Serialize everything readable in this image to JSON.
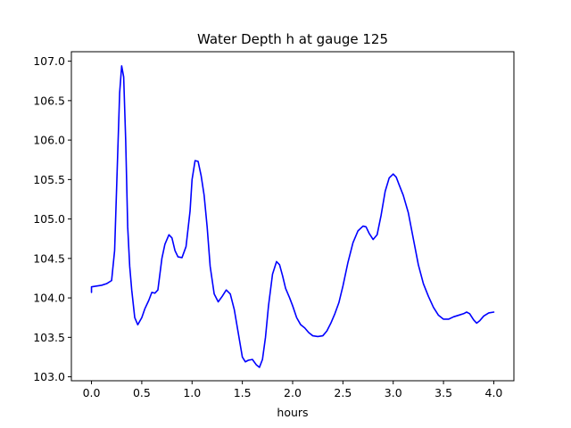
{
  "chart_data": {
    "type": "line",
    "title": "Water Depth h at gauge 125",
    "xlabel": "hours",
    "ylabel": "",
    "xlim": [
      -0.2,
      4.2
    ],
    "ylim": [
      102.95,
      107.12
    ],
    "x_ticks": [
      0.0,
      0.5,
      1.0,
      1.5,
      2.0,
      2.5,
      3.0,
      3.5,
      4.0
    ],
    "x_tick_labels": [
      "0.0",
      "0.5",
      "1.0",
      "1.5",
      "2.0",
      "2.5",
      "3.0",
      "3.5",
      "4.0"
    ],
    "y_ticks": [
      103.0,
      103.5,
      104.0,
      104.5,
      105.0,
      105.5,
      106.0,
      106.5,
      107.0
    ],
    "y_tick_labels": [
      "103.0",
      "103.5",
      "104.0",
      "104.5",
      "105.0",
      "105.5",
      "106.0",
      "106.5",
      "107.0"
    ],
    "grid": false,
    "legend": "none",
    "series": [
      {
        "color": "#0000ff",
        "x": [
          0.0,
          0.0,
          0.05,
          0.1,
          0.15,
          0.2,
          0.23,
          0.26,
          0.28,
          0.3,
          0.32,
          0.34,
          0.36,
          0.38,
          0.4,
          0.43,
          0.46,
          0.5,
          0.53,
          0.57,
          0.6,
          0.63,
          0.66,
          0.7,
          0.73,
          0.77,
          0.8,
          0.83,
          0.86,
          0.9,
          0.94,
          0.98,
          1.0,
          1.03,
          1.06,
          1.09,
          1.12,
          1.15,
          1.18,
          1.22,
          1.26,
          1.3,
          1.34,
          1.38,
          1.42,
          1.46,
          1.5,
          1.53,
          1.56,
          1.6,
          1.64,
          1.67,
          1.7,
          1.73,
          1.76,
          1.8,
          1.84,
          1.87,
          1.9,
          1.93,
          1.97,
          2.0,
          2.04,
          2.08,
          2.12,
          2.16,
          2.2,
          2.25,
          2.3,
          2.34,
          2.38,
          2.42,
          2.46,
          2.5,
          2.55,
          2.6,
          2.65,
          2.7,
          2.73,
          2.76,
          2.8,
          2.84,
          2.88,
          2.92,
          2.96,
          3.0,
          3.03,
          3.06,
          3.1,
          3.15,
          3.2,
          3.25,
          3.3,
          3.35,
          3.4,
          3.45,
          3.5,
          3.55,
          3.6,
          3.65,
          3.7,
          3.73,
          3.76,
          3.8,
          3.83,
          3.86,
          3.9,
          3.95,
          4.0
        ],
        "values": [
          104.07,
          104.14,
          104.15,
          104.16,
          104.18,
          104.22,
          104.6,
          105.8,
          106.6,
          106.94,
          106.8,
          106.0,
          104.9,
          104.4,
          104.1,
          103.75,
          103.66,
          103.75,
          103.86,
          103.97,
          104.07,
          104.06,
          104.1,
          104.5,
          104.68,
          104.8,
          104.76,
          104.6,
          104.52,
          104.51,
          104.65,
          105.1,
          105.5,
          105.74,
          105.73,
          105.55,
          105.3,
          104.9,
          104.4,
          104.05,
          103.95,
          104.02,
          104.1,
          104.05,
          103.85,
          103.55,
          103.25,
          103.19,
          103.21,
          103.22,
          103.15,
          103.12,
          103.22,
          103.5,
          103.9,
          104.3,
          104.46,
          104.42,
          104.28,
          104.12,
          104.0,
          103.9,
          103.75,
          103.66,
          103.62,
          103.56,
          103.52,
          103.51,
          103.52,
          103.58,
          103.68,
          103.8,
          103.94,
          104.15,
          104.45,
          104.7,
          104.85,
          104.91,
          104.9,
          104.82,
          104.74,
          104.8,
          105.05,
          105.35,
          105.52,
          105.57,
          105.53,
          105.43,
          105.3,
          105.08,
          104.75,
          104.42,
          104.18,
          104.02,
          103.88,
          103.78,
          103.73,
          103.73,
          103.76,
          103.78,
          103.8,
          103.82,
          103.8,
          103.72,
          103.68,
          103.71,
          103.77,
          103.81,
          103.82
        ]
      }
    ]
  }
}
